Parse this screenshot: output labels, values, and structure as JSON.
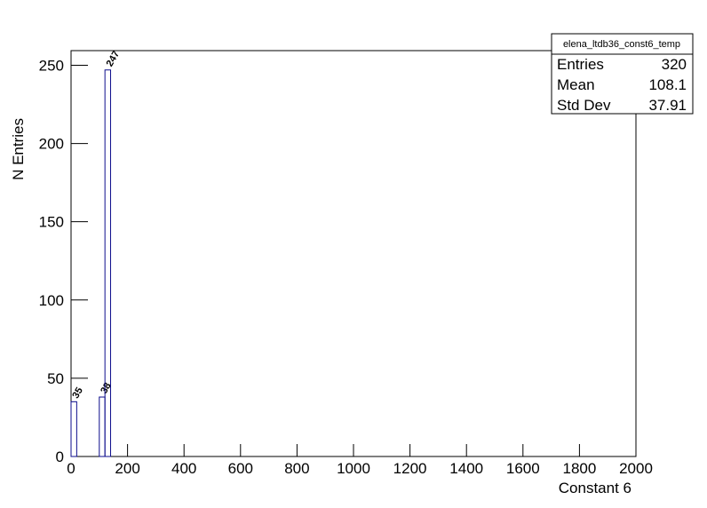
{
  "chart_data": {
    "type": "histogram",
    "x_label": "Constant 6",
    "y_label": "N Entries",
    "bins": [
      0,
      20,
      40,
      60,
      80,
      100,
      120,
      140
    ],
    "counts": [
      35,
      0,
      0,
      0,
      0,
      38,
      247
    ],
    "color": "#0d0d8c",
    "xlim": [
      0,
      2000
    ],
    "xticks": [
      0,
      200,
      400,
      600,
      800,
      1000,
      1200,
      1400,
      1600,
      1800,
      2000
    ],
    "ylim": [
      0,
      259.35
    ],
    "yticks": [
      0,
      50,
      100,
      150,
      200,
      250
    ],
    "stats": {
      "title": "elena_ltdb36_const6_temp",
      "rows": [
        {
          "label": "Entries",
          "value": 320
        },
        {
          "label": "Mean",
          "value": 108.1
        },
        {
          "label": "Std Dev",
          "value": 37.91
        }
      ]
    }
  }
}
